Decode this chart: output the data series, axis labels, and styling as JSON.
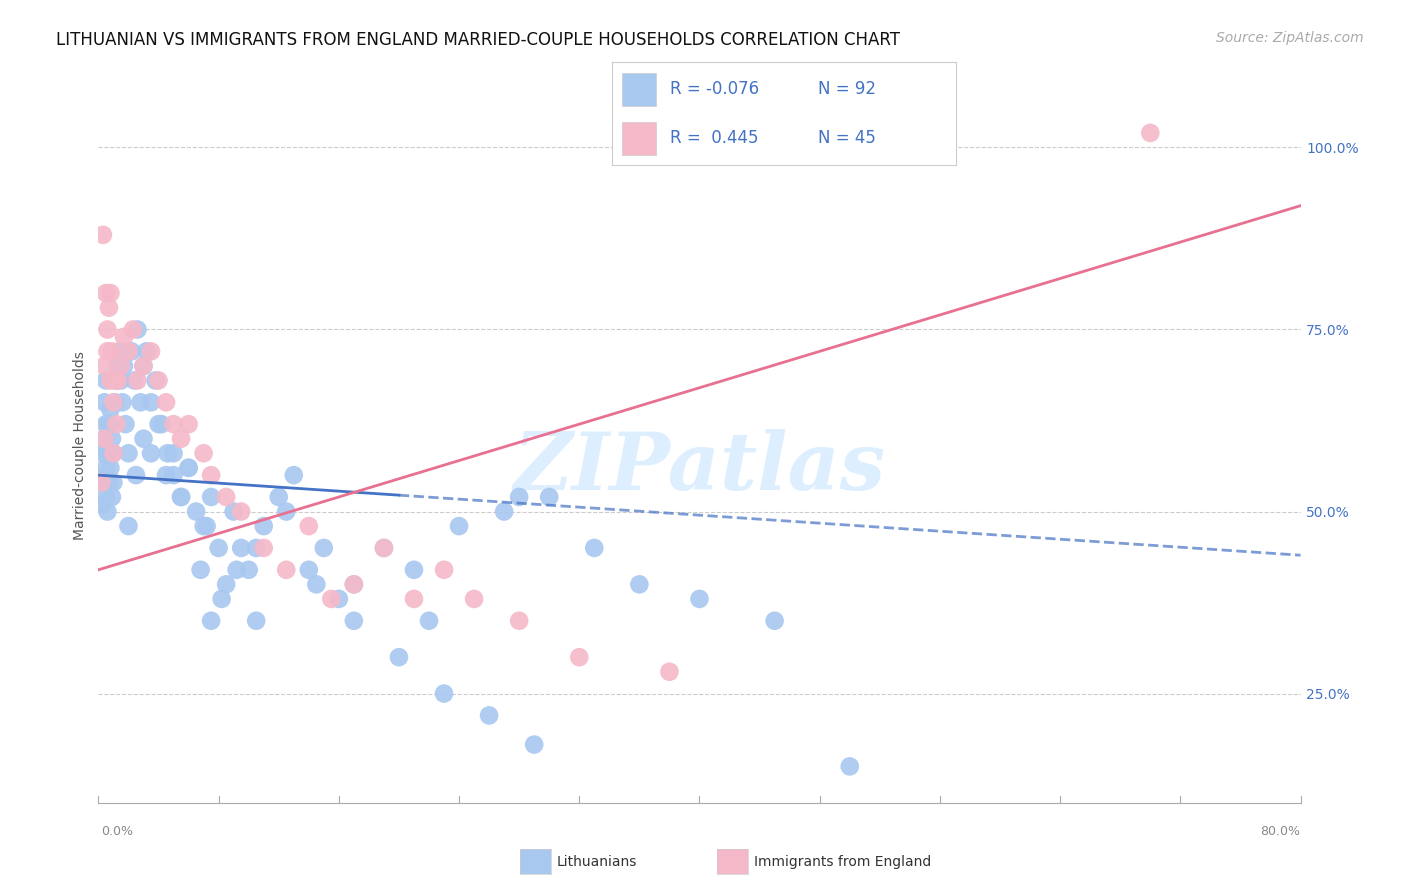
{
  "title": "LITHUANIAN VS IMMIGRANTS FROM ENGLAND MARRIED-COUPLE HOUSEHOLDS CORRELATION CHART",
  "source": "Source: ZipAtlas.com",
  "ylabel": "Married-couple Households",
  "xlim": [
    0.0,
    80.0
  ],
  "ylim": [
    10.0,
    108.0
  ],
  "ytick_values": [
    25.0,
    50.0,
    75.0,
    100.0
  ],
  "blue_color": "#a8c8f0",
  "pink_color": "#f5b8c8",
  "blue_line_color": "#4472c4",
  "pink_line_color": "#e87090",
  "right_axis_color": "#4472c4",
  "legend_text_color": "#4472c4",
  "watermark_text": "ZIPatlas",
  "watermark_color": "#ddeeff",
  "title_fontsize": 12,
  "source_fontsize": 10,
  "blue_scatter_x": [
    0.2,
    0.3,
    0.3,
    0.4,
    0.4,
    0.4,
    0.5,
    0.5,
    0.5,
    0.5,
    0.6,
    0.6,
    0.7,
    0.7,
    0.8,
    0.8,
    0.9,
    0.9,
    1.0,
    1.0,
    1.1,
    1.2,
    1.3,
    1.4,
    1.5,
    1.6,
    1.7,
    1.8,
    2.0,
    2.2,
    2.4,
    2.6,
    2.8,
    3.0,
    3.2,
    3.5,
    3.8,
    4.2,
    4.6,
    5.0,
    5.5,
    6.0,
    6.5,
    7.0,
    7.5,
    8.0,
    9.0,
    10.0,
    11.0,
    12.0,
    13.0,
    14.0,
    15.0,
    16.0,
    17.0,
    19.0,
    21.0,
    24.0,
    27.0,
    30.0,
    33.0,
    36.0,
    40.0,
    45.0,
    50.0,
    22.0,
    28.0,
    7.5,
    8.5,
    9.5,
    10.5,
    2.0,
    2.5,
    3.0,
    3.5,
    4.0,
    4.5,
    5.0,
    5.5,
    6.0,
    6.8,
    7.2,
    8.2,
    9.2,
    10.5,
    12.5,
    14.5,
    17.0,
    20.0,
    23.0,
    26.0,
    29.0
  ],
  "blue_scatter_y": [
    54.0,
    51.0,
    58.0,
    55.0,
    60.0,
    65.0,
    52.0,
    56.0,
    62.0,
    68.0,
    50.0,
    58.0,
    54.0,
    62.0,
    56.0,
    64.0,
    52.0,
    60.0,
    54.0,
    58.0,
    65.0,
    68.0,
    70.0,
    72.0,
    68.0,
    65.0,
    70.0,
    62.0,
    58.0,
    72.0,
    68.0,
    75.0,
    65.0,
    70.0,
    72.0,
    65.0,
    68.0,
    62.0,
    58.0,
    55.0,
    52.0,
    56.0,
    50.0,
    48.0,
    52.0,
    45.0,
    50.0,
    42.0,
    48.0,
    52.0,
    55.0,
    42.0,
    45.0,
    38.0,
    40.0,
    45.0,
    42.0,
    48.0,
    50.0,
    52.0,
    45.0,
    40.0,
    38.0,
    35.0,
    15.0,
    35.0,
    52.0,
    35.0,
    40.0,
    45.0,
    35.0,
    48.0,
    55.0,
    60.0,
    58.0,
    62.0,
    55.0,
    58.0,
    52.0,
    56.0,
    42.0,
    48.0,
    38.0,
    42.0,
    45.0,
    50.0,
    40.0,
    35.0,
    30.0,
    25.0,
    22.0,
    18.0
  ],
  "pink_scatter_x": [
    0.2,
    0.3,
    0.4,
    0.5,
    0.6,
    0.7,
    0.8,
    0.9,
    1.0,
    1.1,
    1.2,
    1.3,
    1.5,
    1.7,
    2.0,
    2.3,
    2.6,
    3.0,
    3.5,
    4.0,
    4.5,
    5.0,
    5.5,
    6.0,
    7.0,
    7.5,
    8.5,
    9.5,
    11.0,
    12.5,
    14.0,
    15.5,
    17.0,
    19.0,
    21.0,
    23.0,
    25.0,
    28.0,
    32.0,
    38.0,
    0.4,
    0.6,
    0.8,
    1.0,
    70.0
  ],
  "pink_scatter_y": [
    54.0,
    88.0,
    70.0,
    80.0,
    72.0,
    78.0,
    68.0,
    72.0,
    65.0,
    68.0,
    62.0,
    68.0,
    70.0,
    74.0,
    72.0,
    75.0,
    68.0,
    70.0,
    72.0,
    68.0,
    65.0,
    62.0,
    60.0,
    62.0,
    58.0,
    55.0,
    52.0,
    50.0,
    45.0,
    42.0,
    48.0,
    38.0,
    40.0,
    45.0,
    38.0,
    42.0,
    38.0,
    35.0,
    30.0,
    28.0,
    60.0,
    75.0,
    80.0,
    58.0,
    102.0
  ],
  "blue_reg_x0": 0.0,
  "blue_reg_y0": 55.0,
  "blue_reg_x1": 80.0,
  "blue_reg_y1": 44.0,
  "blue_dash_start": 20.0,
  "pink_reg_x0": 0.0,
  "pink_reg_y0": 42.0,
  "pink_reg_x1": 80.0,
  "pink_reg_y1": 92.0
}
